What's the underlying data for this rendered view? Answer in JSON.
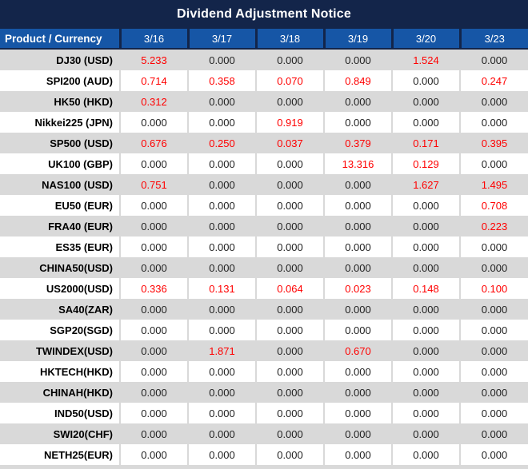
{
  "title": "Dividend Adjustment Notice",
  "colors": {
    "title_bg": "#13254A",
    "header_bg": "#1656A6",
    "stripe_gray": "#D9D9D9",
    "value_text": "#1F1F1F",
    "nonzero_red": "#FF0000"
  },
  "table": {
    "columns": [
      "Product / Currency",
      "3/16",
      "3/17",
      "3/18",
      "3/19",
      "3/20",
      "3/23"
    ],
    "rows": [
      {
        "product": "DJ30 (USD)",
        "values": [
          "5.233",
          "0.000",
          "0.000",
          "0.000",
          "1.524",
          "0.000"
        ]
      },
      {
        "product": "SPI200 (AUD)",
        "values": [
          "0.714",
          "0.358",
          "0.070",
          "0.849",
          "0.000",
          "0.247"
        ]
      },
      {
        "product": "HK50 (HKD)",
        "values": [
          "0.312",
          "0.000",
          "0.000",
          "0.000",
          "0.000",
          "0.000"
        ]
      },
      {
        "product": "Nikkei225 (JPN)",
        "values": [
          "0.000",
          "0.000",
          "0.919",
          "0.000",
          "0.000",
          "0.000"
        ]
      },
      {
        "product": "SP500 (USD)",
        "values": [
          "0.676",
          "0.250",
          "0.037",
          "0.379",
          "0.171",
          "0.395"
        ]
      },
      {
        "product": "UK100 (GBP)",
        "values": [
          "0.000",
          "0.000",
          "0.000",
          "13.316",
          "0.129",
          "0.000"
        ]
      },
      {
        "product": "NAS100 (USD)",
        "values": [
          "0.751",
          "0.000",
          "0.000",
          "0.000",
          "1.627",
          "1.495"
        ]
      },
      {
        "product": "EU50 (EUR)",
        "values": [
          "0.000",
          "0.000",
          "0.000",
          "0.000",
          "0.000",
          "0.708"
        ]
      },
      {
        "product": "FRA40 (EUR)",
        "values": [
          "0.000",
          "0.000",
          "0.000",
          "0.000",
          "0.000",
          "0.223"
        ]
      },
      {
        "product": "ES35 (EUR)",
        "values": [
          "0.000",
          "0.000",
          "0.000",
          "0.000",
          "0.000",
          "0.000"
        ]
      },
      {
        "product": "CHINA50(USD)",
        "values": [
          "0.000",
          "0.000",
          "0.000",
          "0.000",
          "0.000",
          "0.000"
        ]
      },
      {
        "product": "US2000(USD)",
        "values": [
          "0.336",
          "0.131",
          "0.064",
          "0.023",
          "0.148",
          "0.100"
        ]
      },
      {
        "product": "SA40(ZAR)",
        "values": [
          "0.000",
          "0.000",
          "0.000",
          "0.000",
          "0.000",
          "0.000"
        ]
      },
      {
        "product": "SGP20(SGD)",
        "values": [
          "0.000",
          "0.000",
          "0.000",
          "0.000",
          "0.000",
          "0.000"
        ]
      },
      {
        "product": "TWINDEX(USD)",
        "values": [
          "0.000",
          "1.871",
          "0.000",
          "0.670",
          "0.000",
          "0.000"
        ]
      },
      {
        "product": "HKTECH(HKD)",
        "values": [
          "0.000",
          "0.000",
          "0.000",
          "0.000",
          "0.000",
          "0.000"
        ]
      },
      {
        "product": "CHINAH(HKD)",
        "values": [
          "0.000",
          "0.000",
          "0.000",
          "0.000",
          "0.000",
          "0.000"
        ]
      },
      {
        "product": "IND50(USD)",
        "values": [
          "0.000",
          "0.000",
          "0.000",
          "0.000",
          "0.000",
          "0.000"
        ]
      },
      {
        "product": "SWI20(CHF)",
        "values": [
          "0.000",
          "0.000",
          "0.000",
          "0.000",
          "0.000",
          "0.000"
        ]
      },
      {
        "product": "NETH25(EUR)",
        "values": [
          "0.000",
          "0.000",
          "0.000",
          "0.000",
          "0.000",
          "0.000"
        ]
      }
    ]
  }
}
